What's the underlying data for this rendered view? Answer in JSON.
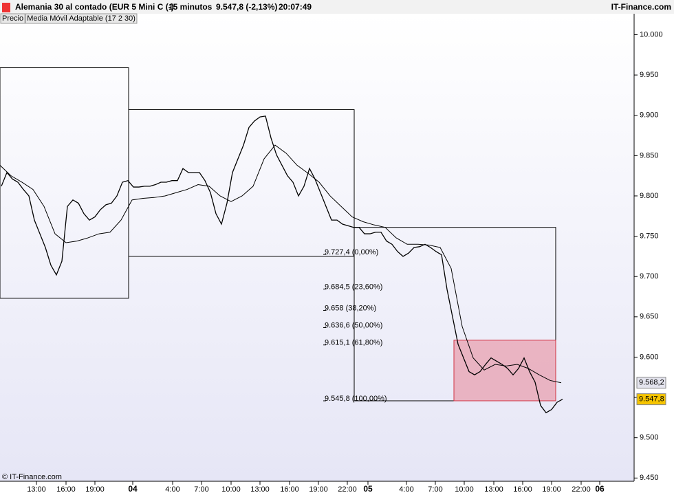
{
  "header": {
    "title": "Alemania 30 al contado (EUR 5 Mini C (-)",
    "timeframe": "15 minutos",
    "price": "9.547,8 (-2,13%)",
    "time": "20:07:49",
    "brand": "IT-Finance.com"
  },
  "footer": "© IT-Finance.com",
  "chart_data": {
    "type": "line",
    "series": [
      {
        "name": "Precio",
        "color": "#000000",
        "values": [
          9812,
          9829,
          9821,
          9817,
          9808,
          9800,
          9770,
          9753,
          9736,
          9714,
          9702,
          9719,
          9787,
          9795,
          9791,
          9778,
          9770,
          9774,
          9783,
          9789,
          9791,
          9800,
          9817,
          9819,
          9811,
          9811,
          9812,
          9812,
          9814,
          9817,
          9817,
          9819,
          9819,
          9834,
          9829,
          9829,
          9829,
          9819,
          9804,
          9778,
          9765,
          9791,
          9829,
          9846,
          9863,
          9885,
          9893,
          9898,
          9899,
          9872,
          9851,
          9838,
          9825,
          9817,
          9800,
          9812,
          9834,
          9821,
          9804,
          9787,
          9770,
          9770,
          9765,
          9763,
          9761,
          9761,
          9753,
          9753,
          9755,
          9755,
          9744,
          9740,
          9731,
          9725,
          9729,
          9736,
          9737,
          9740,
          9736,
          9731,
          9727,
          9684,
          9650,
          9616,
          9599,
          9582,
          9578,
          9582,
          9591,
          9599,
          9595,
          9591,
          9586,
          9578,
          9586,
          9599,
          9582,
          9569,
          9540,
          9531,
          9535,
          9544,
          9547.8
        ]
      },
      {
        "name": "Media Móvil Adaptable (17 2 30)",
        "color": "#000000",
        "values": [
          9838,
          9825,
          9817,
          9808,
          9787,
          9753,
          9742,
          9744,
          9748,
          9753,
          9755,
          9770,
          9795,
          9797,
          9798,
          9800,
          9804,
          9808,
          9814,
          9812,
          9800,
          9793,
          9800,
          9812,
          9846,
          9863,
          9853,
          9838,
          9828,
          9817,
          9800,
          9787,
          9774,
          9768,
          9764,
          9761,
          9748,
          9740,
          9740,
          9739,
          9736,
          9710,
          9638,
          9599,
          9584,
          9591,
          9589,
          9591,
          9586,
          9578,
          9571,
          9568.2
        ]
      }
    ],
    "x_labels": [
      "13:00",
      "16:00",
      "19:00",
      "04",
      "4:00",
      "7:00",
      "10:00",
      "13:00",
      "16:00",
      "19:00",
      "22:00",
      "05",
      "4:00",
      "7:00",
      "10:00",
      "13:00",
      "16:00",
      "19:00",
      "22:00",
      "06"
    ],
    "ylim": [
      9446,
      10026
    ],
    "yticks": [
      {
        "value": 10000,
        "label": "10.000"
      },
      {
        "value": 9950,
        "label": "9.950"
      },
      {
        "value": 9900,
        "label": "9.900"
      },
      {
        "value": 9850,
        "label": "9.850"
      },
      {
        "value": 9800,
        "label": "9.800"
      },
      {
        "value": 9750,
        "label": "9.750"
      },
      {
        "value": 9700,
        "label": "9.700"
      },
      {
        "value": 9650,
        "label": "9.650"
      },
      {
        "value": 9600,
        "label": "9.600"
      },
      {
        "value": 9550,
        "label": "9.550"
      },
      {
        "value": 9500,
        "label": "9.500"
      },
      {
        "value": 9450,
        "label": "9.450"
      }
    ],
    "boxes": [
      {
        "high": 9959,
        "low": 9673
      },
      {
        "high": 9907,
        "low": 9725
      },
      {
        "high": 9761,
        "low": 9545.8
      },
      {
        "high": 9621,
        "low": 9545.8,
        "color": "#e8a0b0"
      }
    ],
    "fib_levels": [
      {
        "value": 9727.4,
        "label": "9.727,4 (0,00%)"
      },
      {
        "value": 9684.5,
        "label": "9.684,5 (23,60%)"
      },
      {
        "value": 9658,
        "label": "9.658 (38,20%)"
      },
      {
        "value": 9636.6,
        "label": "9.636,6 (50,00%)"
      },
      {
        "value": 9615.1,
        "label": "9.615,1 (61,80%)"
      },
      {
        "value": 9545.8,
        "label": "9.545,8 (100,00%)"
      }
    ],
    "badges": [
      {
        "value": 9568.2,
        "label": "9.568,2",
        "color": "#e4e4ee"
      },
      {
        "value": 9547.8,
        "label": "9.547,8",
        "color": "#f5c400"
      }
    ]
  }
}
